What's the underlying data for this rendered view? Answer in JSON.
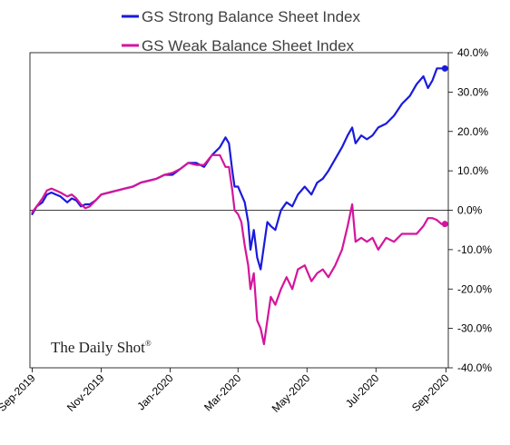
{
  "chart_data": {
    "type": "line",
    "title": "",
    "xlabel": "",
    "ylabel": "",
    "ylim": [
      -40,
      40
    ],
    "yticks": [
      40,
      30,
      20,
      10,
      0,
      -10,
      -20,
      -30,
      -40
    ],
    "ytick_labels": [
      "40.0%",
      "30.0%",
      "20.0%",
      "10.0%",
      "0.0%",
      "-10.0%",
      "-20.0%",
      "-30.0%",
      "-40.0%"
    ],
    "xlim": [
      "2019-08-30",
      "2020-09-03"
    ],
    "xticks": [
      "2019-09-01",
      "2019-11-01",
      "2020-01-01",
      "2020-03-01",
      "2020-05-01",
      "2020-07-01",
      "2020-09-01"
    ],
    "xtick_labels": [
      "Sep-2019",
      "Nov-2019",
      "Jan-2020",
      "Mar-2020",
      "May-2020",
      "Jul-2020",
      "Sep-2020"
    ],
    "legend_position": "top",
    "grid": false,
    "watermark": "The Daily Shot",
    "watermark_mark": "®",
    "series": [
      {
        "name": "GS Strong Balance Sheet Index",
        "color": "#1a1adc",
        "points": [
          [
            "2019-09-01",
            -1.0
          ],
          [
            "2019-09-05",
            1.0
          ],
          [
            "2019-09-10",
            2.0
          ],
          [
            "2019-09-14",
            4.0
          ],
          [
            "2019-09-18",
            4.5
          ],
          [
            "2019-09-22",
            4.0
          ],
          [
            "2019-09-26",
            3.5
          ],
          [
            "2019-10-02",
            2.0
          ],
          [
            "2019-10-06",
            3.0
          ],
          [
            "2019-10-10",
            2.5
          ],
          [
            "2019-10-14",
            1.0
          ],
          [
            "2019-10-18",
            1.5
          ],
          [
            "2019-10-22",
            1.5
          ],
          [
            "2019-10-27",
            2.5
          ],
          [
            "2019-11-01",
            4.0
          ],
          [
            "2019-11-08",
            4.5
          ],
          [
            "2019-11-15",
            5.0
          ],
          [
            "2019-11-22",
            5.5
          ],
          [
            "2019-11-29",
            6.0
          ],
          [
            "2019-12-06",
            7.0
          ],
          [
            "2019-12-13",
            7.5
          ],
          [
            "2019-12-20",
            8.0
          ],
          [
            "2019-12-27",
            9.0
          ],
          [
            "2020-01-03",
            9.0
          ],
          [
            "2020-01-10",
            10.5
          ],
          [
            "2020-01-17",
            12.0
          ],
          [
            "2020-01-24",
            12.0
          ],
          [
            "2020-01-31",
            11.0
          ],
          [
            "2020-02-07",
            14.0
          ],
          [
            "2020-02-14",
            16.0
          ],
          [
            "2020-02-19",
            18.5
          ],
          [
            "2020-02-22",
            17.0
          ],
          [
            "2020-02-25",
            10.0
          ],
          [
            "2020-02-27",
            6.0
          ],
          [
            "2020-03-01",
            6.0
          ],
          [
            "2020-03-04",
            4.0
          ],
          [
            "2020-03-07",
            2.0
          ],
          [
            "2020-03-10",
            -3.0
          ],
          [
            "2020-03-12",
            -10.0
          ],
          [
            "2020-03-15",
            -5.0
          ],
          [
            "2020-03-18",
            -12.0
          ],
          [
            "2020-03-21",
            -15.0
          ],
          [
            "2020-03-24",
            -9.0
          ],
          [
            "2020-03-27",
            -3.0
          ],
          [
            "2020-03-30",
            -4.0
          ],
          [
            "2020-04-03",
            -5.0
          ],
          [
            "2020-04-08",
            0.0
          ],
          [
            "2020-04-13",
            2.0
          ],
          [
            "2020-04-18",
            1.0
          ],
          [
            "2020-04-23",
            4.0
          ],
          [
            "2020-04-29",
            6.0
          ],
          [
            "2020-05-05",
            4.0
          ],
          [
            "2020-05-10",
            7.0
          ],
          [
            "2020-05-15",
            8.0
          ],
          [
            "2020-05-20",
            10.0
          ],
          [
            "2020-05-26",
            13.0
          ],
          [
            "2020-06-01",
            16.0
          ],
          [
            "2020-06-06",
            19.0
          ],
          [
            "2020-06-10",
            21.0
          ],
          [
            "2020-06-13",
            17.0
          ],
          [
            "2020-06-18",
            19.0
          ],
          [
            "2020-06-23",
            18.0
          ],
          [
            "2020-06-28",
            19.0
          ],
          [
            "2020-07-03",
            21.0
          ],
          [
            "2020-07-10",
            22.0
          ],
          [
            "2020-07-17",
            24.0
          ],
          [
            "2020-07-24",
            27.0
          ],
          [
            "2020-07-31",
            29.0
          ],
          [
            "2020-08-06",
            32.0
          ],
          [
            "2020-08-12",
            34.0
          ],
          [
            "2020-08-16",
            31.0
          ],
          [
            "2020-08-20",
            33.0
          ],
          [
            "2020-08-24",
            36.0
          ],
          [
            "2020-08-28",
            36.0
          ],
          [
            "2020-08-31",
            36.0
          ]
        ]
      },
      {
        "name": "GS Weak Balance Sheet Index",
        "color": "#d4159c",
        "points": [
          [
            "2019-09-01",
            -0.5
          ],
          [
            "2019-09-05",
            1.0
          ],
          [
            "2019-09-10",
            3.0
          ],
          [
            "2019-09-14",
            5.0
          ],
          [
            "2019-09-18",
            5.5
          ],
          [
            "2019-09-22",
            5.0
          ],
          [
            "2019-09-26",
            4.5
          ],
          [
            "2019-10-02",
            3.5
          ],
          [
            "2019-10-06",
            4.0
          ],
          [
            "2019-10-10",
            3.0
          ],
          [
            "2019-10-14",
            1.5
          ],
          [
            "2019-10-18",
            0.5
          ],
          [
            "2019-10-22",
            1.0
          ],
          [
            "2019-10-27",
            2.5
          ],
          [
            "2019-11-01",
            4.0
          ],
          [
            "2019-11-08",
            4.5
          ],
          [
            "2019-11-15",
            5.0
          ],
          [
            "2019-11-22",
            5.5
          ],
          [
            "2019-11-29",
            6.0
          ],
          [
            "2019-12-06",
            7.0
          ],
          [
            "2019-12-13",
            7.5
          ],
          [
            "2019-12-20",
            8.0
          ],
          [
            "2019-12-27",
            9.0
          ],
          [
            "2020-01-03",
            9.5
          ],
          [
            "2020-01-10",
            10.5
          ],
          [
            "2020-01-17",
            12.0
          ],
          [
            "2020-01-24",
            11.5
          ],
          [
            "2020-01-31",
            11.5
          ],
          [
            "2020-02-07",
            14.0
          ],
          [
            "2020-02-14",
            14.0
          ],
          [
            "2020-02-19",
            11.0
          ],
          [
            "2020-02-22",
            11.0
          ],
          [
            "2020-02-25",
            5.0
          ],
          [
            "2020-02-27",
            0.0
          ],
          [
            "2020-03-01",
            -1.0
          ],
          [
            "2020-03-04",
            -3.0
          ],
          [
            "2020-03-07",
            -9.0
          ],
          [
            "2020-03-10",
            -14.0
          ],
          [
            "2020-03-12",
            -20.0
          ],
          [
            "2020-03-15",
            -16.0
          ],
          [
            "2020-03-18",
            -28.0
          ],
          [
            "2020-03-21",
            -30.0
          ],
          [
            "2020-03-24",
            -34.0
          ],
          [
            "2020-03-27",
            -28.0
          ],
          [
            "2020-03-30",
            -22.0
          ],
          [
            "2020-04-03",
            -24.0
          ],
          [
            "2020-04-08",
            -20.0
          ],
          [
            "2020-04-13",
            -17.0
          ],
          [
            "2020-04-18",
            -20.0
          ],
          [
            "2020-04-23",
            -15.0
          ],
          [
            "2020-04-29",
            -14.0
          ],
          [
            "2020-05-05",
            -18.0
          ],
          [
            "2020-05-10",
            -16.0
          ],
          [
            "2020-05-15",
            -15.0
          ],
          [
            "2020-05-20",
            -17.0
          ],
          [
            "2020-05-26",
            -14.0
          ],
          [
            "2020-06-01",
            -10.0
          ],
          [
            "2020-06-06",
            -4.0
          ],
          [
            "2020-06-10",
            1.5
          ],
          [
            "2020-06-13",
            -8.0
          ],
          [
            "2020-06-18",
            -7.0
          ],
          [
            "2020-06-23",
            -8.0
          ],
          [
            "2020-06-28",
            -7.0
          ],
          [
            "2020-07-03",
            -10.0
          ],
          [
            "2020-07-10",
            -7.0
          ],
          [
            "2020-07-17",
            -8.0
          ],
          [
            "2020-07-24",
            -6.0
          ],
          [
            "2020-07-31",
            -6.0
          ],
          [
            "2020-08-06",
            -6.0
          ],
          [
            "2020-08-12",
            -4.0
          ],
          [
            "2020-08-16",
            -2.0
          ],
          [
            "2020-08-20",
            -2.0
          ],
          [
            "2020-08-24",
            -2.5
          ],
          [
            "2020-08-28",
            -3.5
          ],
          [
            "2020-08-31",
            -3.5
          ]
        ]
      }
    ]
  }
}
